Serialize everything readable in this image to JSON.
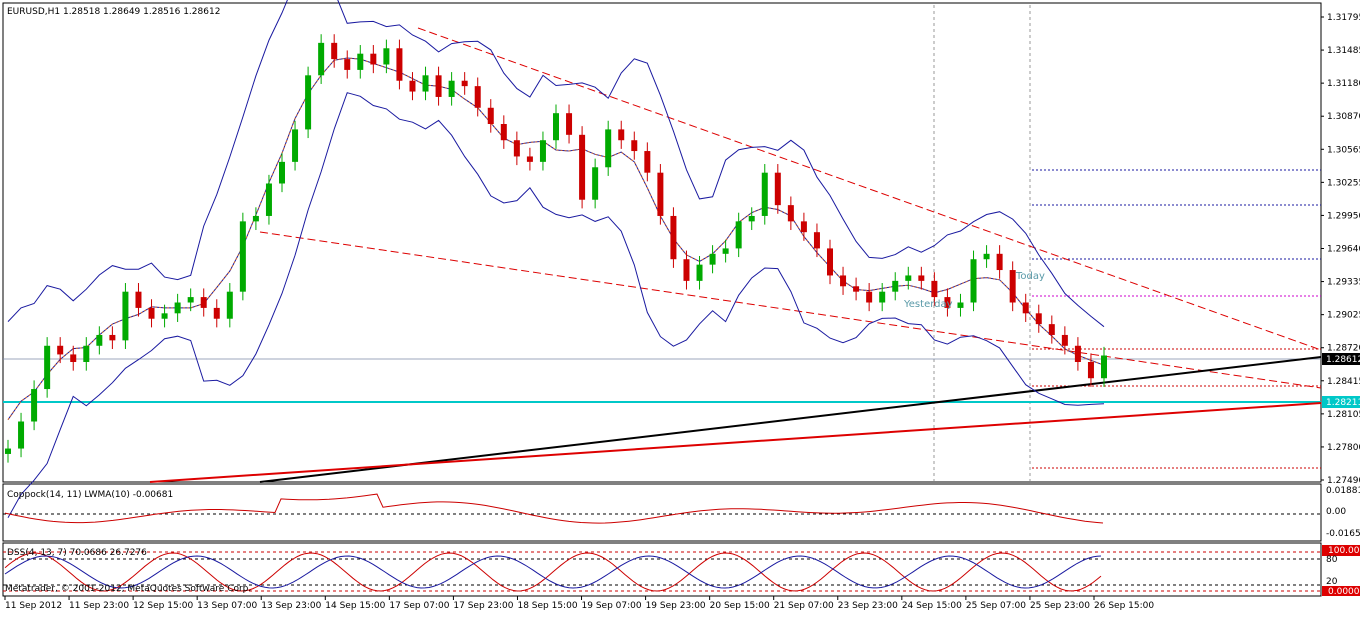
{
  "header": {
    "symbol_info": "EURUSD,H1  1.28518 1.28649 1.28516 1.28612"
  },
  "price_axis": {
    "labels": [
      "1.31795",
      "1.31485",
      "1.31180",
      "1.30870",
      "1.30565",
      "1.30255",
      "1.29950",
      "1.29640",
      "1.29335",
      "1.29025",
      "1.28720",
      "1.28415",
      "1.28105",
      "1.27800",
      "1.27490"
    ],
    "current_price": "1.28612",
    "hline_price": "1.28211"
  },
  "time_axis": {
    "labels": [
      "11 Sep 2012",
      "11 Sep 23:00",
      "12 Sep 15:00",
      "13 Sep 07:00",
      "13 Sep 23:00",
      "14 Sep 15:00",
      "17 Sep 07:00",
      "17 Sep 23:00",
      "18 Sep 15:00",
      "19 Sep 07:00",
      "19 Sep 23:00",
      "20 Sep 15:00",
      "21 Sep 07:00",
      "23 Sep 23:00",
      "24 Sep 15:00",
      "25 Sep 07:00",
      "25 Sep 23:00",
      "26 Sep 15:00"
    ]
  },
  "annotations": {
    "yesterday": "Yesterday",
    "today": "Today"
  },
  "coppock": {
    "label": "Coppock(14, 11) LWMA(10) -0.00681",
    "axis": [
      "0.01881",
      "0.00",
      "-0.01658"
    ]
  },
  "dss": {
    "label": "DSS(4, 13, 7) 70.0686 26.7276",
    "axis_badge_top": "100.0000",
    "axis_top": "80",
    "axis_bottom": "20",
    "axis_badge_bottom": "0.0000"
  },
  "copyright": "Metatrader, © 2001-2012, MetaQuotes Software Corp.",
  "colors": {
    "candle_up": "#00aa00",
    "candle_down": "#cc0000",
    "bollinger": "#1a1aa0",
    "trendline": "#000000",
    "support": "#dd0000",
    "hline": "#00c8c8"
  },
  "chart_data": {
    "type": "candlestick",
    "title": "EURUSD,H1",
    "ylim": [
      1.2745,
      1.3185
    ],
    "ohlc_close_series": [
      1.2775,
      1.28,
      1.283,
      1.287,
      1.2862,
      1.2855,
      1.287,
      1.288,
      1.2875,
      1.292,
      1.2905,
      1.2895,
      1.29,
      1.291,
      1.2915,
      1.2905,
      1.2895,
      1.292,
      1.2985,
      1.299,
      1.302,
      1.304,
      1.307,
      1.312,
      1.315,
      1.3135,
      1.3125,
      1.314,
      1.313,
      1.3145,
      1.3115,
      1.3105,
      1.312,
      1.31,
      1.3115,
      1.311,
      1.309,
      1.3075,
      1.306,
      1.3045,
      1.304,
      1.306,
      1.3085,
      1.3065,
      1.3005,
      1.3035,
      1.307,
      1.306,
      1.305,
      1.303,
      1.299,
      1.295,
      1.293,
      1.2945,
      1.2955,
      1.296,
      1.2985,
      1.299,
      1.303,
      1.3,
      1.2985,
      1.2975,
      1.296,
      1.2935,
      1.2925,
      1.292,
      1.291,
      1.292,
      1.293,
      1.2935,
      1.293,
      1.2915,
      1.2905,
      1.291,
      1.295,
      1.2955,
      1.294,
      1.291,
      1.29,
      1.289,
      1.288,
      1.287,
      1.2855,
      1.284,
      1.2861
    ]
  }
}
